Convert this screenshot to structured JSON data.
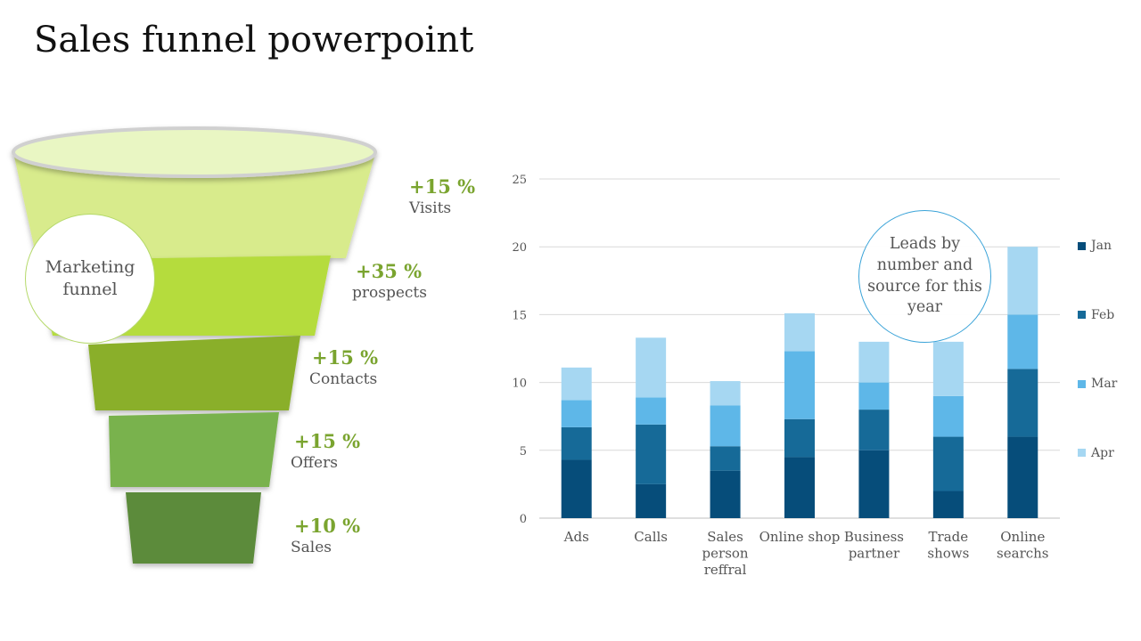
{
  "page": {
    "title": "Sales funnel powerpoint"
  },
  "funnel": {
    "center_label": "Marketing funnel",
    "stages": [
      {
        "percent": "+15 %",
        "label": "Visits",
        "color": "#d8eb8c"
      },
      {
        "percent": "+35 %",
        "label": "prospects",
        "color": "#b5dc3c"
      },
      {
        "percent": "+15 %",
        "label": "Contacts",
        "color": "#8aaf2c"
      },
      {
        "percent": "+15 %",
        "label": "Offers",
        "color": "#79b24e"
      },
      {
        "percent": "+10 %",
        "label": "Sales",
        "color": "#5b8b3b"
      }
    ],
    "top_ellipse_color": "#e9f6c3",
    "accent_text_color": "#7aa42f"
  },
  "chart_data": {
    "type": "bar",
    "stacked": true,
    "categories": [
      "Ads",
      "Calls",
      "Sales person reffral",
      "Online shop",
      "Business partner",
      "Trade shows",
      "Online searchs"
    ],
    "category_lines": [
      [
        "Ads"
      ],
      [
        "Calls"
      ],
      [
        "Sales",
        "person",
        "reffral"
      ],
      [
        "Online shop"
      ],
      [
        "Business",
        "partner"
      ],
      [
        "Trade",
        "shows"
      ],
      [
        "Online",
        "searchs"
      ]
    ],
    "series": [
      {
        "name": "Jan",
        "color": "#064d7a",
        "values": [
          4.3,
          2.5,
          3.5,
          4.5,
          5,
          2,
          6
        ]
      },
      {
        "name": "Feb",
        "color": "#166a98",
        "values": [
          2.4,
          4.4,
          1.8,
          2.8,
          3,
          4,
          5
        ]
      },
      {
        "name": "Mar",
        "color": "#5eb7e8",
        "values": [
          2,
          2,
          3,
          5,
          2,
          3,
          4
        ]
      },
      {
        "name": "Apr",
        "color": "#a6d7f2",
        "values": [
          2.4,
          4.4,
          1.8,
          2.8,
          3,
          4,
          5
        ]
      }
    ],
    "ylim": [
      0,
      25
    ],
    "yticks": [
      0,
      5,
      10,
      15,
      20,
      25
    ],
    "grid": true,
    "legend_position": "right",
    "annotation": "Leads by number and source for this year"
  }
}
